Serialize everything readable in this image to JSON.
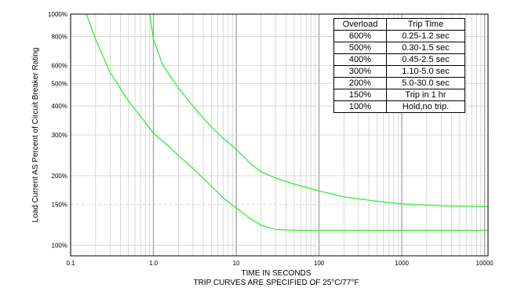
{
  "chart_data": {
    "type": "line",
    "title": "",
    "xlabel": "TIME IN SECONDS",
    "caption": "TRIP CURVES ARE SPECIFIED OF 25°C/77°F",
    "ylabel": "Load Current AS Percent of Circuit Breaker Rating",
    "x_scale": "log",
    "y_scale": "log",
    "xlim": [
      0.1,
      11000
    ],
    "ylim": [
      90,
      1000
    ],
    "x_ticks": [
      {
        "value": 0.1,
        "label": "0.1"
      },
      {
        "value": 1,
        "label": "1.0"
      },
      {
        "value": 10,
        "label": "10"
      },
      {
        "value": 100,
        "label": "100"
      },
      {
        "value": 1000,
        "label": "1000"
      },
      {
        "value": 10000,
        "label": "10000"
      }
    ],
    "y_ticks": [
      {
        "value": 100,
        "label": "100%"
      },
      {
        "value": 150,
        "label": "150%"
      },
      {
        "value": 200,
        "label": "200%"
      },
      {
        "value": 300,
        "label": "300%"
      },
      {
        "value": 400,
        "label": "400%"
      },
      {
        "value": 500,
        "label": "500%"
      },
      {
        "value": 600,
        "label": "600%"
      },
      {
        "value": 800,
        "label": "800%"
      },
      {
        "value": 1000,
        "label": "1000%"
      }
    ],
    "grid": true,
    "line_color": "#33ee33",
    "series": [
      {
        "values": [
          [
            0.155,
            1000
          ],
          [
            0.2,
            780
          ],
          [
            0.3,
            560
          ],
          [
            0.5,
            420
          ],
          [
            0.8,
            340
          ],
          [
            1.0,
            305
          ],
          [
            1.5,
            270
          ],
          [
            2,
            245
          ],
          [
            3,
            215
          ],
          [
            5,
            180
          ],
          [
            7,
            160
          ],
          [
            10,
            145
          ],
          [
            15,
            130
          ],
          [
            20,
            122
          ],
          [
            30,
            117
          ],
          [
            50,
            116
          ],
          [
            100,
            116
          ],
          [
            1000,
            116
          ],
          [
            11000,
            116
          ]
        ]
      },
      {
        "values": [
          [
            0.9,
            1000
          ],
          [
            1.0,
            780
          ],
          [
            1.3,
            600
          ],
          [
            2,
            480
          ],
          [
            3,
            400
          ],
          [
            4,
            355
          ],
          [
            5,
            325
          ],
          [
            7,
            290
          ],
          [
            10,
            260
          ],
          [
            15,
            225
          ],
          [
            20,
            208
          ],
          [
            30,
            195
          ],
          [
            50,
            184
          ],
          [
            100,
            172
          ],
          [
            200,
            162
          ],
          [
            500,
            155
          ],
          [
            1000,
            151
          ],
          [
            3000,
            148
          ],
          [
            11000,
            147
          ]
        ]
      }
    ]
  },
  "table": {
    "header": [
      "Overload",
      "Trip Time"
    ],
    "rows": [
      [
        "600%",
        "0.25-1.2  sec"
      ],
      [
        "500%",
        "0.30-1.5  sec"
      ],
      [
        "400%",
        "0.45-2.5  sec"
      ],
      [
        "300%",
        "1.10-5.0  sec"
      ],
      [
        "200%",
        "5.0-30.0  sec"
      ],
      [
        "150%",
        "Trip in 1 hr"
      ],
      [
        "100%",
        "Hold,no trip."
      ]
    ]
  }
}
